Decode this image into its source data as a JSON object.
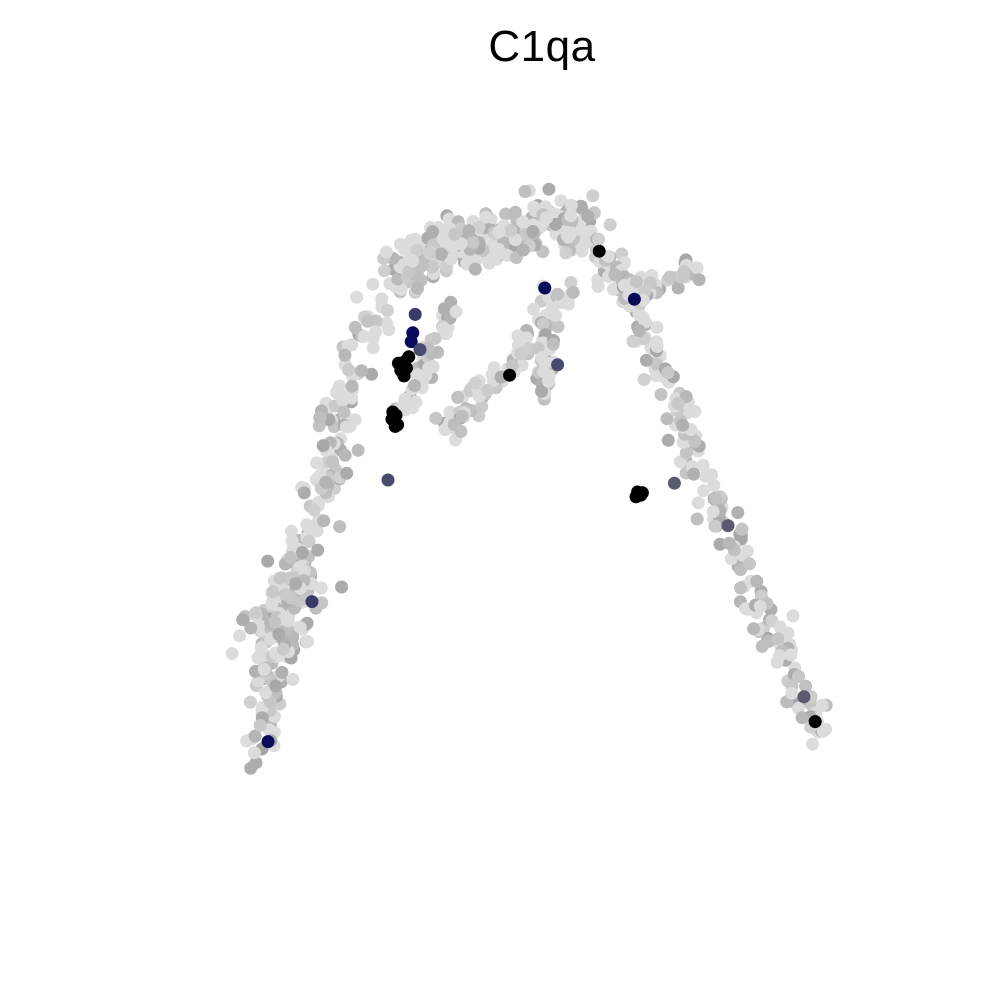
{
  "chart_data": {
    "type": "scatter",
    "title": "C1qa",
    "xlabel": "",
    "ylabel": "",
    "axes_visible": false,
    "grid": false,
    "legend": "none",
    "xlim": [
      0,
      100
    ],
    "ylim": [
      0,
      100
    ],
    "colors": {
      "low": "#dcdcdc",
      "mid": "#a5a5a5",
      "high_blue": "#0a0a5a",
      "high": "#000000"
    },
    "branches": [
      {
        "name": "left-arm",
        "path": [
          [
            20,
            18
          ],
          [
            21,
            27
          ],
          [
            23,
            37
          ],
          [
            26,
            44
          ],
          [
            28,
            52
          ],
          [
            30,
            62
          ],
          [
            33,
            70
          ],
          [
            36,
            76
          ],
          [
            40,
            80
          ],
          [
            45,
            81
          ],
          [
            50,
            82
          ]
        ],
        "width": 2.2,
        "count": 260
      },
      {
        "name": "left-lower-blob",
        "path": [
          [
            21,
            30
          ],
          [
            22,
            34
          ],
          [
            24,
            38
          ],
          [
            26,
            39
          ]
        ],
        "width": 3.5,
        "count": 120
      },
      {
        "name": "top-bridge",
        "path": [
          [
            38,
            80
          ],
          [
            42,
            81.5
          ],
          [
            47,
            82
          ],
          [
            52,
            83
          ],
          [
            56,
            86
          ],
          [
            59,
            85
          ],
          [
            62,
            82
          ]
        ],
        "width": 2.8,
        "count": 230
      },
      {
        "name": "right-arm",
        "path": [
          [
            62,
            82
          ],
          [
            66,
            76
          ],
          [
            69,
            70
          ],
          [
            72,
            62
          ],
          [
            75,
            54
          ],
          [
            78,
            47
          ],
          [
            81,
            40
          ],
          [
            84,
            33
          ],
          [
            87,
            27
          ],
          [
            90,
            21
          ]
        ],
        "width": 1.8,
        "count": 200
      },
      {
        "name": "right-spur",
        "path": [
          [
            64,
            77
          ],
          [
            68,
            76
          ],
          [
            71,
            77.5
          ],
          [
            74,
            79
          ]
        ],
        "width": 1.6,
        "count": 60
      },
      {
        "name": "inner-left-branch",
        "path": [
          [
            44,
            74
          ],
          [
            42,
            70
          ],
          [
            40,
            65
          ],
          [
            38,
            60
          ]
        ],
        "width": 1.3,
        "count": 50
      },
      {
        "name": "mid-branch",
        "path": [
          [
            58,
            77
          ],
          [
            55,
            72
          ],
          [
            52,
            68
          ],
          [
            49,
            65
          ],
          [
            46,
            62
          ],
          [
            44,
            58
          ]
        ],
        "width": 1.8,
        "count": 80
      },
      {
        "name": "mid-sub-branch",
        "path": [
          [
            56,
            70
          ],
          [
            56,
            66
          ],
          [
            55.5,
            63
          ]
        ],
        "width": 1.0,
        "count": 25
      }
    ],
    "points": [
      {
        "x": 37.8,
        "y": 66.8,
        "color": "#000000"
      },
      {
        "x": 38.1,
        "y": 67.3,
        "color": "#000000"
      },
      {
        "x": 37.6,
        "y": 66.2,
        "color": "#000000"
      },
      {
        "x": 38.3,
        "y": 66.5,
        "color": "#000000"
      },
      {
        "x": 37.9,
        "y": 65.8,
        "color": "#000000"
      },
      {
        "x": 38.6,
        "y": 67.9,
        "color": "#000000"
      },
      {
        "x": 37.3,
        "y": 67.1,
        "color": "#000000"
      },
      {
        "x": 38.0,
        "y": 65.5,
        "color": "#000000"
      },
      {
        "x": 38.9,
        "y": 69.8,
        "color": "#0a0a5a"
      },
      {
        "x": 39.1,
        "y": 70.9,
        "color": "#0a0a5a"
      },
      {
        "x": 39.4,
        "y": 73.2,
        "color": "#3a3a6a"
      },
      {
        "x": 40.0,
        "y": 68.8,
        "color": "#4a4a70"
      },
      {
        "x": 36.6,
        "y": 61.0,
        "color": "#000000"
      },
      {
        "x": 37.0,
        "y": 60.6,
        "color": "#000000"
      },
      {
        "x": 36.8,
        "y": 59.8,
        "color": "#000000"
      },
      {
        "x": 37.2,
        "y": 59.4,
        "color": "#000000"
      },
      {
        "x": 36.5,
        "y": 60.1,
        "color": "#000000"
      },
      {
        "x": 36.9,
        "y": 59.2,
        "color": "#000000"
      },
      {
        "x": 67.2,
        "y": 51.0,
        "color": "#000000"
      },
      {
        "x": 67.6,
        "y": 50.6,
        "color": "#000000"
      },
      {
        "x": 67.0,
        "y": 50.4,
        "color": "#000000"
      },
      {
        "x": 67.8,
        "y": 50.9,
        "color": "#000000"
      },
      {
        "x": 36.0,
        "y": 52.5,
        "color": "#4a4a70"
      },
      {
        "x": 62.4,
        "y": 81.1,
        "color": "#000000"
      },
      {
        "x": 55.6,
        "y": 76.5,
        "color": "#0a0a5a"
      },
      {
        "x": 66.8,
        "y": 75.1,
        "color": "#0a0a5a"
      },
      {
        "x": 57.2,
        "y": 66.9,
        "color": "#4a4a70"
      },
      {
        "x": 51.2,
        "y": 65.6,
        "color": "#000000"
      },
      {
        "x": 26.5,
        "y": 37.3,
        "color": "#3a3a6a"
      },
      {
        "x": 21.0,
        "y": 19.8,
        "color": "#0a0a5a"
      },
      {
        "x": 71.8,
        "y": 52.1,
        "color": "#5a5a70"
      },
      {
        "x": 78.5,
        "y": 46.8,
        "color": "#5a5a70"
      },
      {
        "x": 88.0,
        "y": 25.4,
        "color": "#5a5a70"
      },
      {
        "x": 89.4,
        "y": 22.3,
        "color": "#000000"
      }
    ]
  }
}
